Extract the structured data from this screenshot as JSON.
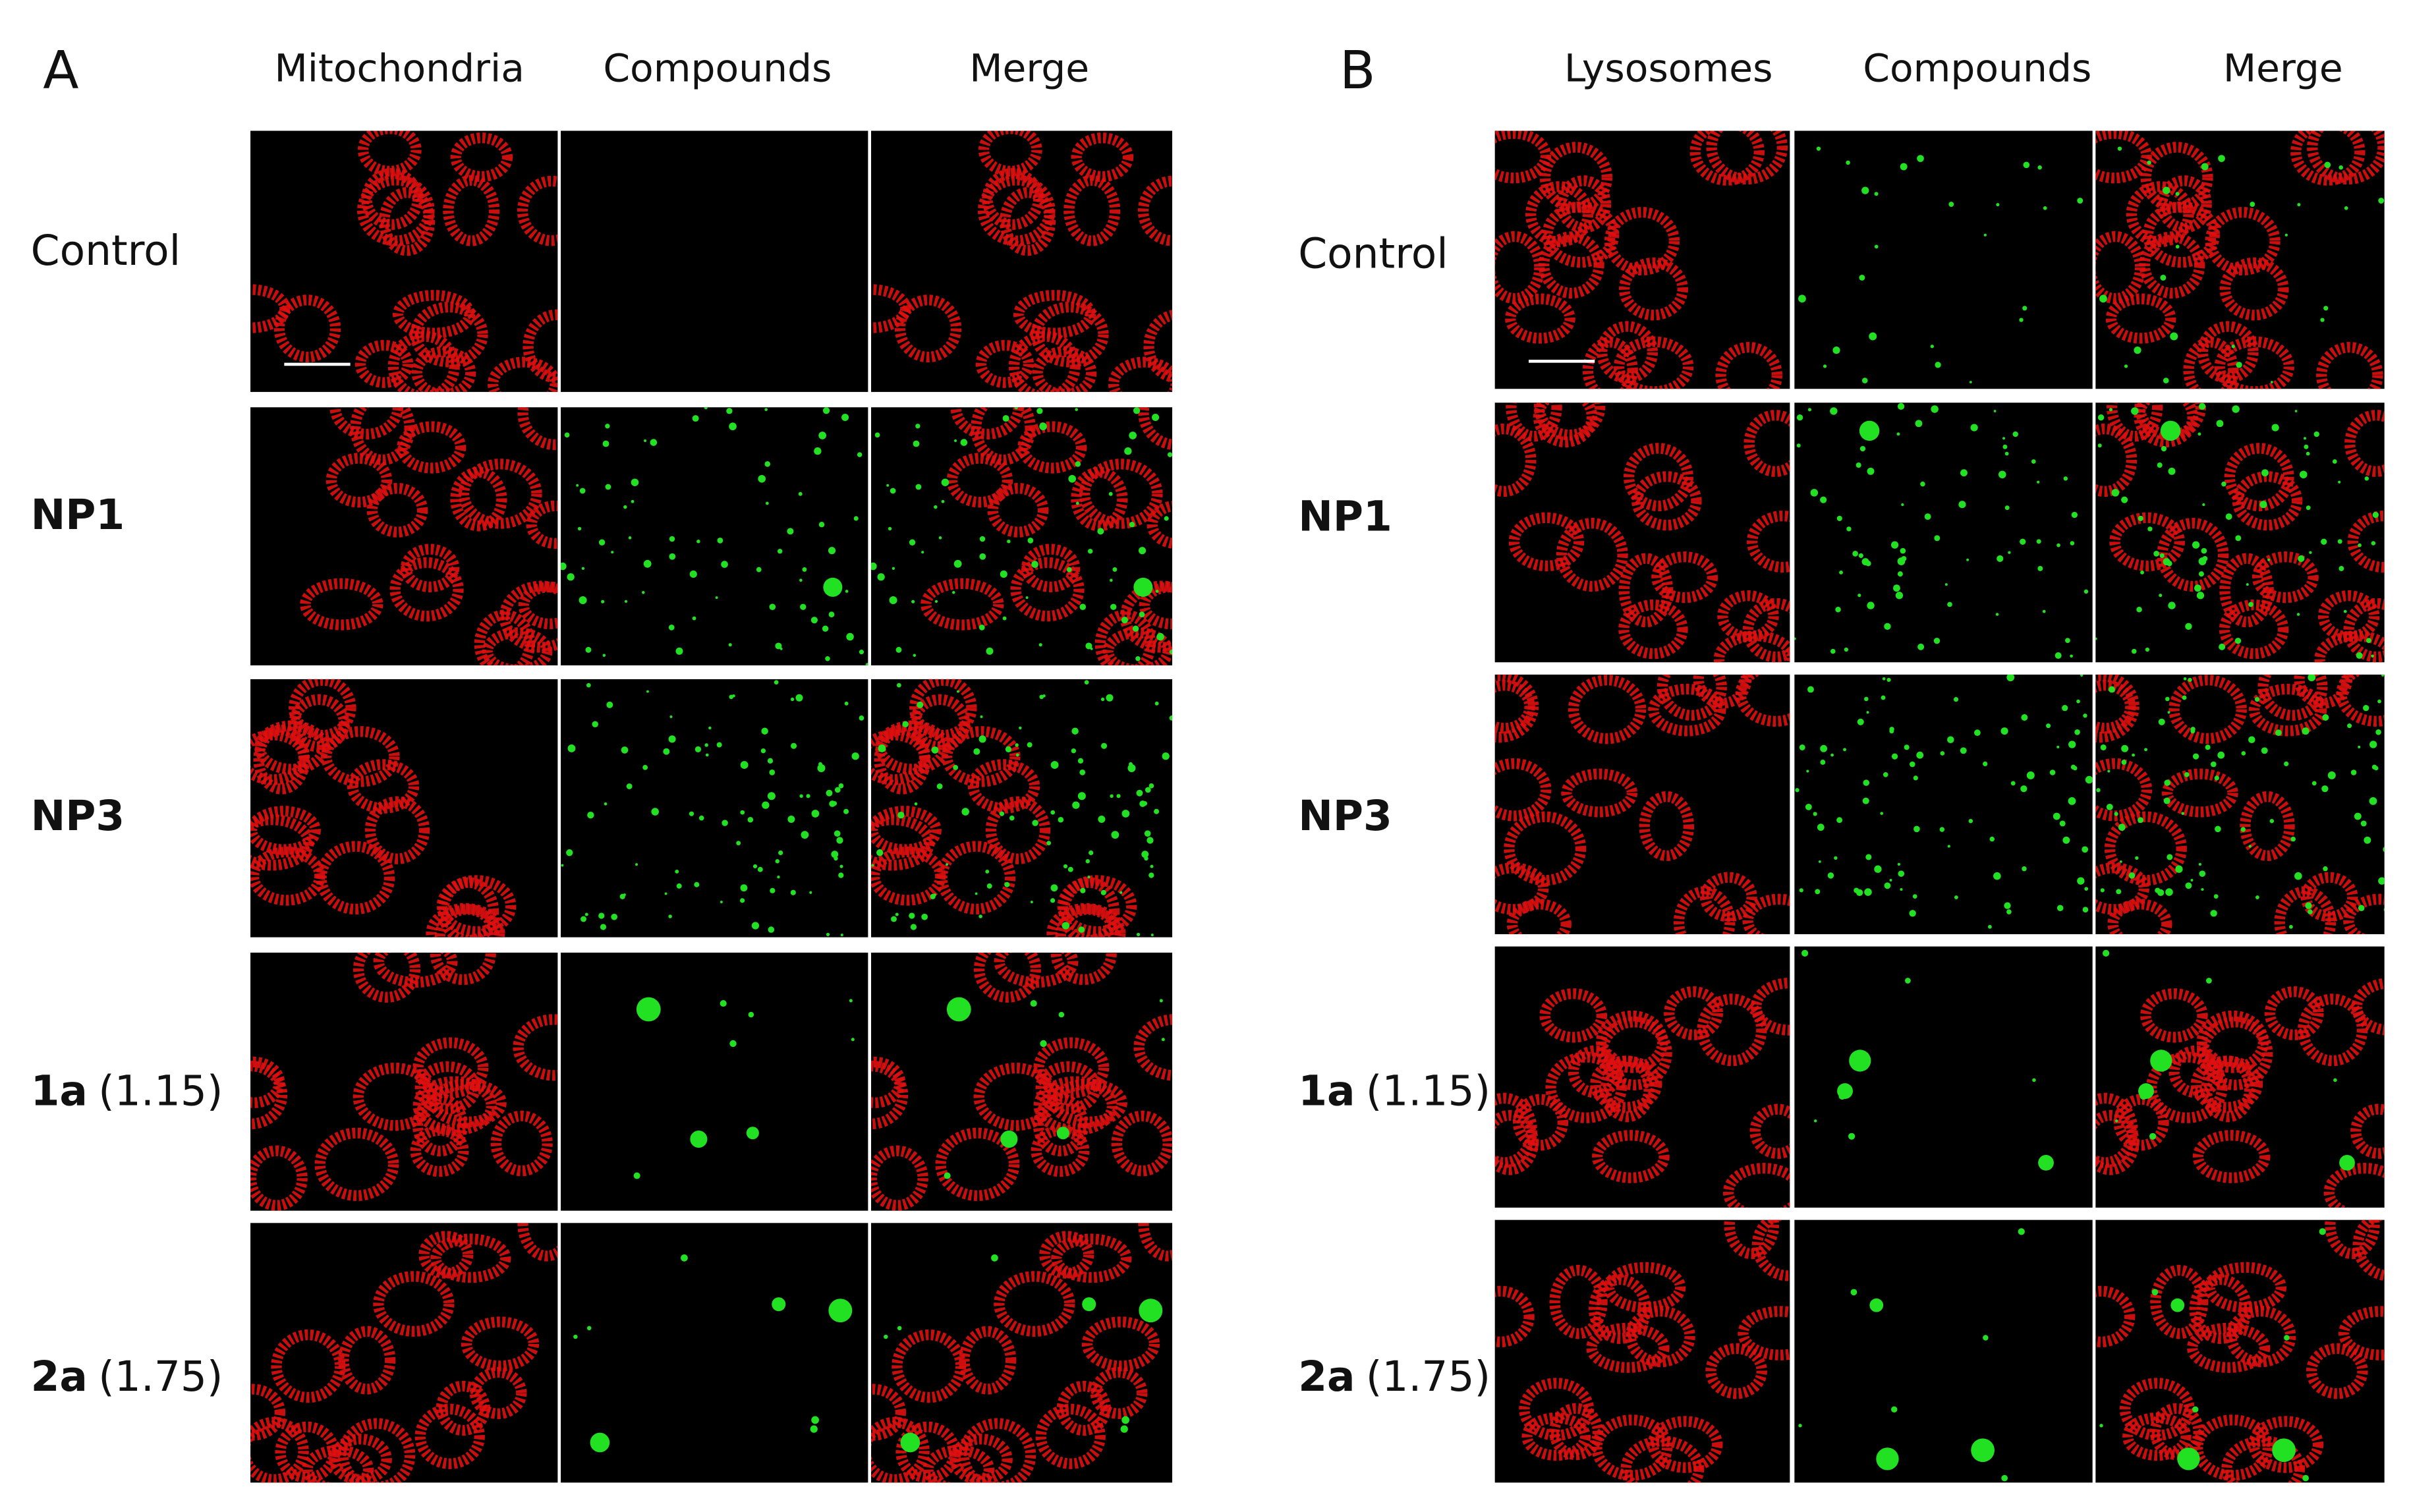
{
  "panels": [
    {
      "letter": "A",
      "columns": [
        "Mitochondria",
        "Compounds",
        "Merge"
      ],
      "rows": [
        {
          "normal": "Control"
        },
        {
          "bold": "NP1"
        },
        {
          "bold": "NP3"
        },
        {
          "bold": "1a",
          "normal": "(1.15)"
        },
        {
          "bold": "2a",
          "normal": "(1.75)"
        }
      ]
    },
    {
      "letter": "B",
      "columns": [
        "Lysosomes",
        "Compounds",
        "Merge"
      ],
      "rows": [
        {
          "normal": "Control"
        },
        {
          "bold": "NP1"
        },
        {
          "bold": "NP3"
        },
        {
          "bold": "1a",
          "normal": "(1.15)"
        },
        {
          "bold": "2a",
          "normal": "(1.75)"
        }
      ]
    }
  ]
}
